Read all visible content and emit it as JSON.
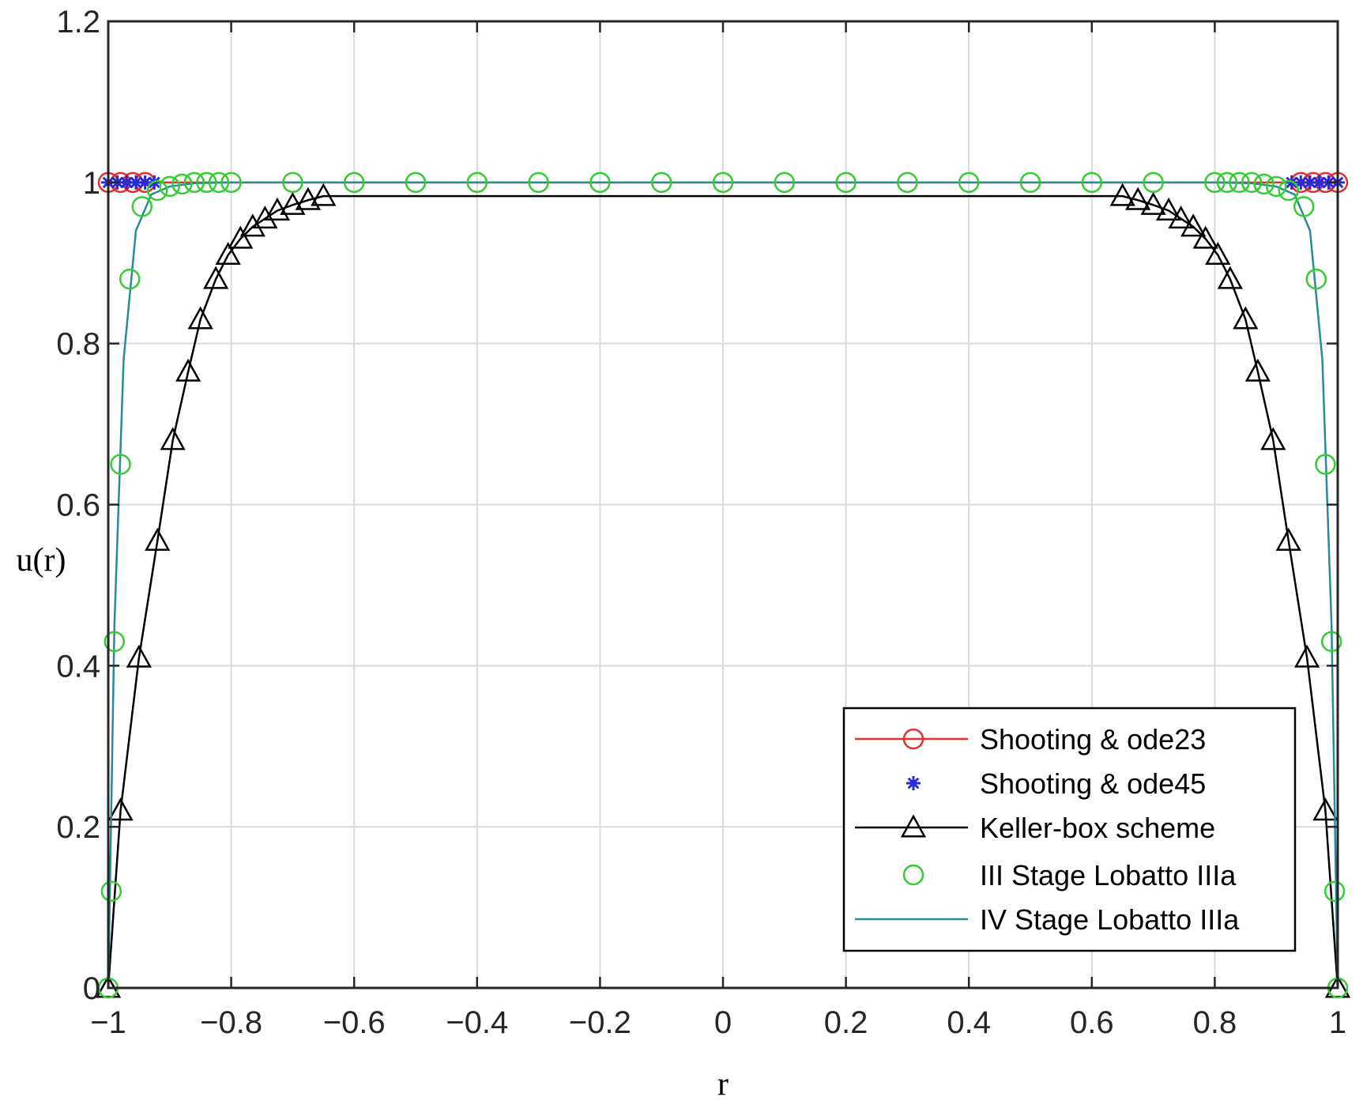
{
  "chart_data": {
    "type": "line",
    "xlabel": "r",
    "ylabel": "u(r)",
    "xlim": [
      -1,
      1
    ],
    "ylim": [
      0,
      1.2
    ],
    "x_ticks": [
      -1,
      -0.8,
      -0.6,
      -0.4,
      -0.2,
      0,
      0.2,
      0.4,
      0.6,
      0.8,
      1
    ],
    "x_tick_labels": [
      "−1",
      "−0.8",
      "−0.6",
      "−0.4",
      "−0.2",
      "0",
      "0.2",
      "0.4",
      "0.6",
      "0.8",
      "1"
    ],
    "y_ticks": [
      0,
      0.2,
      0.4,
      0.6,
      0.8,
      1,
      1.2
    ],
    "y_tick_labels": [
      "0",
      "0.2",
      "0.4",
      "0.6",
      "0.8",
      "1",
      "1.2"
    ],
    "grid": true,
    "legend_position": "bottom-right",
    "series": [
      {
        "name": "Shooting & ode23",
        "color": "#e0302a",
        "marker": "circle",
        "line": true,
        "x": [
          -1,
          -0.98,
          -0.96,
          -0.94,
          0.94,
          0.96,
          0.98,
          1
        ],
        "y": [
          1,
          1,
          1,
          1,
          1,
          1,
          1,
          1
        ]
      },
      {
        "name": "Shooting & ode45",
        "color": "#2b2bd6",
        "marker": "star",
        "line": false,
        "x": [
          -1,
          -0.985,
          -0.97,
          -0.955,
          -0.94,
          -0.925,
          0.925,
          0.94,
          0.955,
          0.97,
          0.985,
          1
        ],
        "y": [
          1,
          1,
          1,
          1,
          1,
          1,
          1,
          1,
          1,
          1,
          1,
          1
        ]
      },
      {
        "name": "Keller-box scheme",
        "color": "#000000",
        "marker": "triangle",
        "line": true,
        "x": [
          -1,
          -0.98,
          -0.95,
          -0.92,
          -0.895,
          -0.87,
          -0.85,
          -0.825,
          -0.805,
          -0.785,
          -0.765,
          -0.745,
          -0.725,
          -0.7,
          -0.675,
          -0.65,
          0.65,
          0.675,
          0.7,
          0.725,
          0.745,
          0.765,
          0.785,
          0.805,
          0.825,
          0.85,
          0.87,
          0.895,
          0.92,
          0.95,
          0.98,
          1
        ],
        "y": [
          0,
          0.22,
          0.41,
          0.555,
          0.68,
          0.765,
          0.83,
          0.88,
          0.91,
          0.93,
          0.945,
          0.955,
          0.965,
          0.972,
          0.978,
          0.983,
          0.983,
          0.978,
          0.972,
          0.965,
          0.955,
          0.945,
          0.93,
          0.91,
          0.88,
          0.83,
          0.765,
          0.68,
          0.555,
          0.41,
          0.22,
          0
        ]
      },
      {
        "name": "III Stage Lobatto IIIa",
        "color": "#33cc33",
        "marker": "circle",
        "line": false,
        "x": [
          -1,
          -0.995,
          -0.99,
          -0.98,
          -0.965,
          -0.945,
          -0.92,
          -0.9,
          -0.88,
          -0.86,
          -0.84,
          -0.82,
          -0.8,
          -0.7,
          -0.6,
          -0.5,
          -0.4,
          -0.3,
          -0.2,
          -0.1,
          0,
          0.1,
          0.2,
          0.3,
          0.4,
          0.5,
          0.6,
          0.7,
          0.8,
          0.82,
          0.84,
          0.86,
          0.88,
          0.9,
          0.92,
          0.945,
          0.965,
          0.98,
          0.99,
          0.995,
          1
        ],
        "y": [
          0,
          0.12,
          0.43,
          0.65,
          0.88,
          0.97,
          0.99,
          0.995,
          0.998,
          1,
          1,
          1,
          1,
          1,
          1,
          1,
          1,
          1,
          1,
          1,
          1,
          1,
          1,
          1,
          1,
          1,
          1,
          1,
          1,
          1,
          1,
          1,
          0.998,
          0.995,
          0.99,
          0.97,
          0.88,
          0.65,
          0.43,
          0.12,
          0
        ]
      },
      {
        "name": "IV Stage Lobatto IIIa",
        "color": "#2a8a9a",
        "marker": "none",
        "line": true,
        "x": [
          -1,
          -0.99,
          -0.975,
          -0.955,
          -0.93,
          -0.9,
          -0.86,
          -0.8,
          0,
          0.8,
          0.86,
          0.9,
          0.93,
          0.955,
          0.975,
          0.99,
          1
        ],
        "y": [
          0,
          0.45,
          0.78,
          0.94,
          0.985,
          0.995,
          0.999,
          1,
          1,
          1,
          0.999,
          0.995,
          0.985,
          0.94,
          0.78,
          0.45,
          0
        ]
      }
    ]
  }
}
